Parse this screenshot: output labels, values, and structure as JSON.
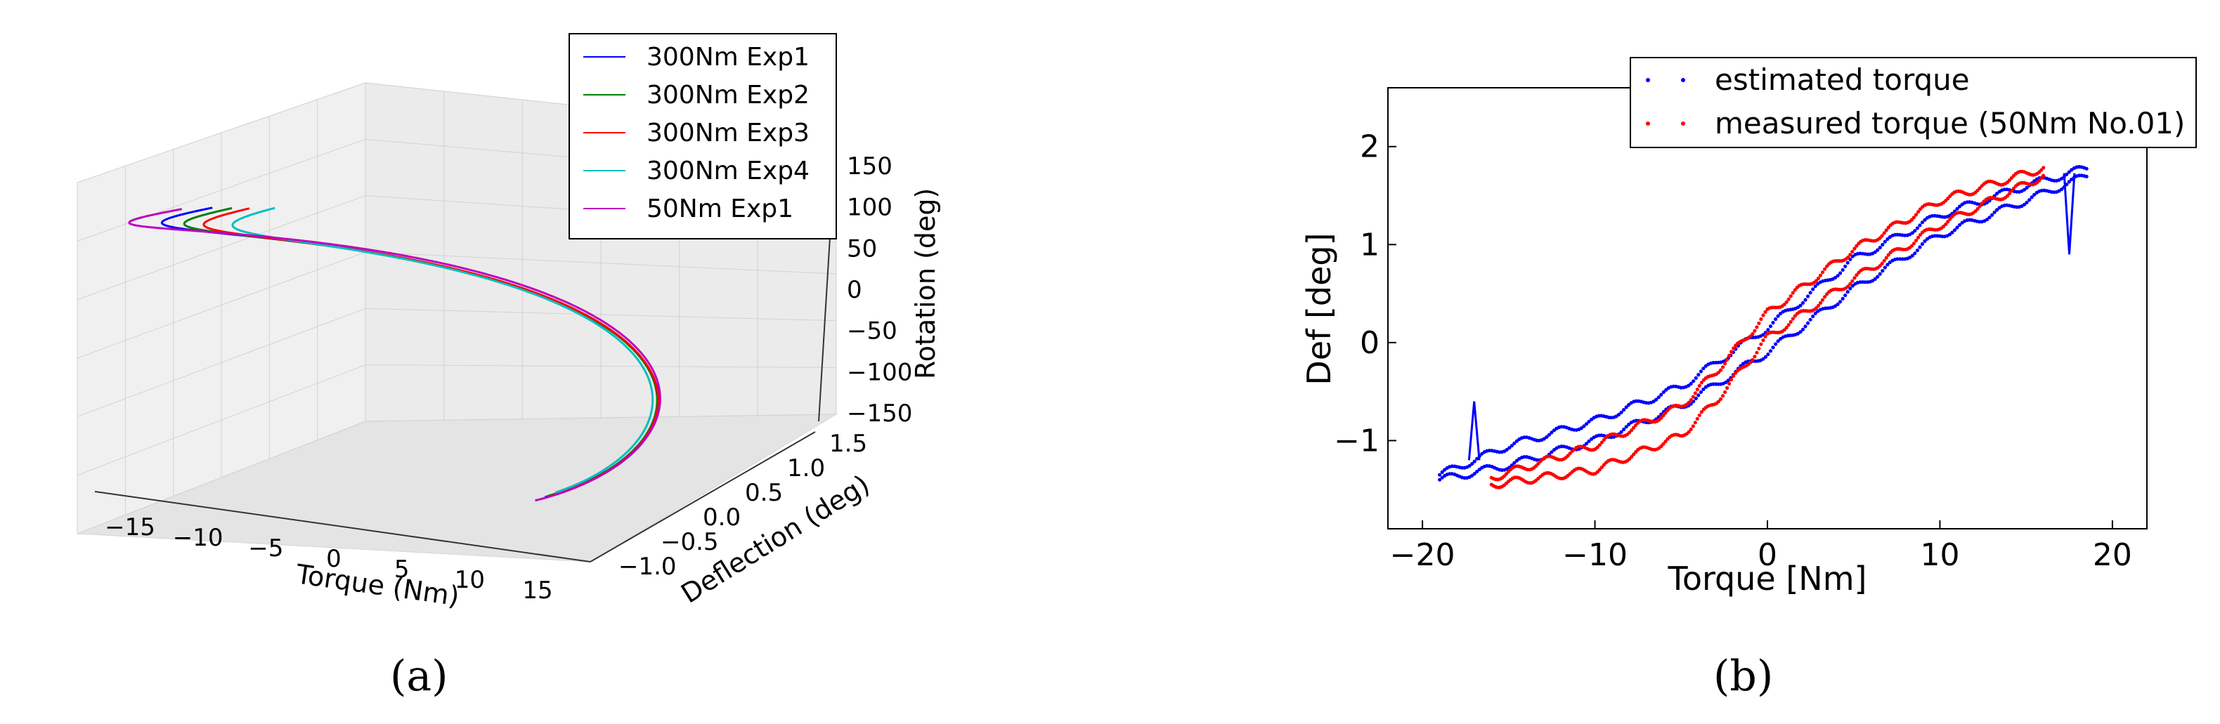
{
  "panels": {
    "a": "(a)",
    "b": "(b)"
  },
  "chart_data": [
    {
      "type": "line3d",
      "xlabel": "Torque (Nm)",
      "ylabel": "Deflection (deg)",
      "zlabel": "Rotation (deg)",
      "x_ticks": [
        "−15",
        "−10",
        "−5",
        "0",
        "5",
        "10",
        "15"
      ],
      "y_ticks": [
        "−1.0",
        "−0.5",
        "0.0",
        "0.5",
        "1.0",
        "1.5"
      ],
      "z_ticks": [
        "150",
        "100",
        "50",
        "0",
        "−50",
        "−100",
        "−150"
      ],
      "xlim": [
        -17,
        17
      ],
      "ylim": [
        -1.3,
        1.6
      ],
      "zlim": [
        -180,
        180
      ],
      "grid": true,
      "legend_position": "top-right",
      "series": [
        {
          "name": "300Nm Exp1",
          "color": "#0000ff",
          "x_amp": 16.0,
          "y_amp": 1.4,
          "offset": 0.0
        },
        {
          "name": "300Nm Exp2",
          "color": "#008000",
          "x_amp": 15.2,
          "y_amp": 1.35,
          "offset": 0.6
        },
        {
          "name": "300Nm Exp3",
          "color": "#ff0000",
          "x_amp": 14.6,
          "y_amp": 1.3,
          "offset": 1.2
        },
        {
          "name": "300Nm Exp4",
          "color": "#00bfbf",
          "x_amp": 13.5,
          "y_amp": 1.2,
          "offset": 1.8
        },
        {
          "name": "50Nm Exp1",
          "color": "#bf00bf",
          "x_amp": 17.0,
          "y_amp": 1.55,
          "offset": -0.8
        }
      ],
      "rotation_range": [
        -160,
        160
      ]
    },
    {
      "type": "scatter",
      "xlabel": "Torque [Nm]",
      "ylabel": "Def [deg]",
      "x_ticks": [
        "−20",
        "−10",
        "0",
        "10",
        "20"
      ],
      "y_ticks": [
        "2",
        "1",
        "0",
        "−1"
      ],
      "xlim": [
        -22,
        22
      ],
      "ylim": [
        -1.9,
        2.6
      ],
      "grid": false,
      "legend_position": "top-right",
      "series": [
        {
          "name": "estimated torque",
          "color": "#0000ff",
          "upper": [
            [
              -19,
              -1.35
            ],
            [
              -15,
              -1.05
            ],
            [
              -10,
              -0.8
            ],
            [
              -5,
              -0.45
            ],
            [
              0,
              0.15
            ],
            [
              5,
              0.85
            ],
            [
              10,
              1.3
            ],
            [
              15,
              1.6
            ],
            [
              18.5,
              1.78
            ]
          ],
          "lower": [
            [
              -19,
              -1.4
            ],
            [
              -15,
              -1.25
            ],
            [
              -10,
              -1.0
            ],
            [
              -5,
              -0.65
            ],
            [
              0,
              -0.1
            ],
            [
              5,
              0.55
            ],
            [
              10,
              1.1
            ],
            [
              15,
              1.45
            ],
            [
              18.5,
              1.7
            ]
          ],
          "spikes": [
            [
              -17,
              -0.6
            ],
            [
              17.5,
              0.9
            ]
          ]
        },
        {
          "name": "measured torque (50Nm No.01)",
          "color": "#ff0000",
          "upper": [
            [
              -16,
              -1.38
            ],
            [
              -10,
              -1.05
            ],
            [
              -5,
              -0.65
            ],
            [
              -3,
              -0.3
            ],
            [
              0,
              0.3
            ],
            [
              5,
              0.95
            ],
            [
              10,
              1.45
            ],
            [
              16,
              1.78
            ]
          ],
          "lower": [
            [
              -16,
              -1.45
            ],
            [
              -10,
              -1.3
            ],
            [
              -5,
              -0.95
            ],
            [
              -3,
              -0.6
            ],
            [
              0,
              0.05
            ],
            [
              5,
              0.65
            ],
            [
              10,
              1.2
            ],
            [
              16,
              1.7
            ]
          ]
        }
      ]
    }
  ]
}
